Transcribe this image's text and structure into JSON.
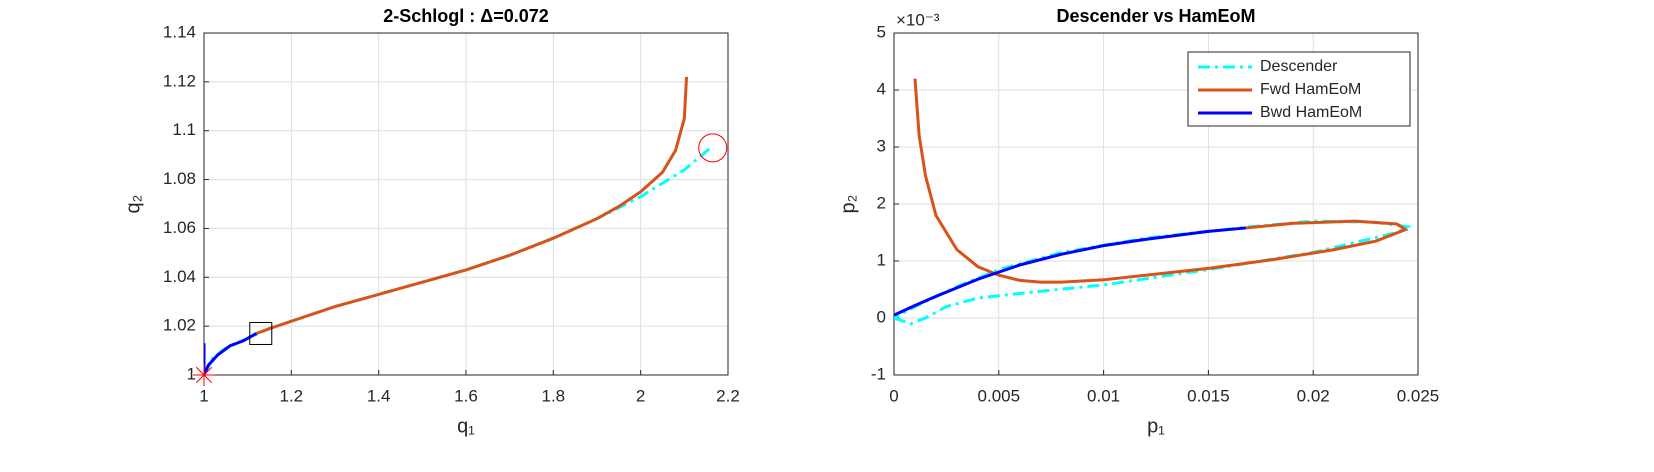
{
  "chart_data": [
    {
      "type": "line",
      "title": "2-Schlogl : Δ=0.072",
      "xlabel": "q₁",
      "ylabel": "q₂",
      "xlim": [
        1,
        2.2
      ],
      "ylim": [
        1,
        1.14
      ],
      "xticks": [
        1,
        1.2,
        1.4,
        1.6,
        1.8,
        2,
        2.2
      ],
      "yticks": [
        1,
        1.02,
        1.04,
        1.06,
        1.08,
        1.1,
        1.12,
        1.14
      ],
      "grid": true,
      "series": [
        {
          "color": "#00ffff",
          "dash": "dash-dot",
          "x": [
            1.0,
            1.02,
            1.05,
            1.1,
            1.15,
            1.2,
            1.3,
            1.4,
            1.5,
            1.6,
            1.7,
            1.8,
            1.9,
            2.0,
            2.1,
            2.16
          ],
          "values": [
            1.0,
            1.007,
            1.011,
            1.015,
            1.019,
            1.022,
            1.028,
            1.033,
            1.038,
            1.043,
            1.049,
            1.056,
            1.064,
            1.073,
            1.084,
            1.093
          ]
        },
        {
          "color": "#d95319",
          "dash": "solid",
          "x": [
            1.12,
            1.15,
            1.2,
            1.3,
            1.4,
            1.5,
            1.6,
            1.7,
            1.8,
            1.9,
            1.95,
            2.0,
            2.05,
            2.08,
            2.1,
            2.105
          ],
          "values": [
            1.017,
            1.019,
            1.022,
            1.028,
            1.033,
            1.038,
            1.043,
            1.049,
            1.056,
            1.064,
            1.069,
            1.075,
            1.083,
            1.092,
            1.105,
            1.122
          ]
        },
        {
          "color": "#0000ff",
          "dash": "solid",
          "x": [
            1.0,
            1.0,
            1.0,
            1.01,
            1.03,
            1.06,
            1.09,
            1.12
          ],
          "values": [
            1.013,
            1.005,
            1.0,
            1.004,
            1.008,
            1.012,
            1.014,
            1.017
          ]
        }
      ],
      "markers": [
        {
          "x": 1,
          "y": 1,
          "shape": "star",
          "color": "#ff0000"
        },
        {
          "x": 1.13,
          "y": 1.017,
          "shape": "square",
          "color": "#000000"
        },
        {
          "x": 2.165,
          "y": 1.093,
          "shape": "circle",
          "color": "#ff0000"
        }
      ]
    },
    {
      "type": "line",
      "title": "Descender vs HamEoM",
      "xlabel": "p₁",
      "ylabel": "p₂",
      "y_exponent_label": "×10⁻³",
      "xlim": [
        0,
        0.025
      ],
      "ylim": [
        -1,
        5
      ],
      "xticks": [
        0,
        0.005,
        0.01,
        0.015,
        0.02,
        0.025
      ],
      "yticks": [
        -1,
        0,
        1,
        2,
        3,
        4,
        5
      ],
      "grid": true,
      "legend": "upper right",
      "series": [
        {
          "name": "Descender",
          "color": "#00ffff",
          "dash": "dash-dot",
          "x": [
            0,
            0.0008,
            0.0015,
            0.0025,
            0.004,
            0.007,
            0.01,
            0.015,
            0.02,
            0.024,
            0.0245,
            0.023,
            0.02,
            0.017,
            0.012,
            0.008,
            0.005,
            0.003,
            0.001,
            0
          ],
          "values": [
            0,
            -0.1,
            0,
            0.2,
            0.35,
            0.47,
            0.58,
            0.85,
            1.15,
            1.5,
            1.6,
            1.68,
            1.7,
            1.6,
            1.4,
            1.15,
            0.85,
            0.55,
            0.2,
            0
          ]
        },
        {
          "name": "Fwd HamEoM",
          "color": "#d95319",
          "dash": "solid",
          "x": [
            0.001,
            0.0012,
            0.0015,
            0.002,
            0.003,
            0.004,
            0.005,
            0.006,
            0.007,
            0.008,
            0.01,
            0.012,
            0.015,
            0.018,
            0.021,
            0.023,
            0.0244,
            0.024,
            0.022,
            0.019,
            0.0168
          ],
          "values": [
            4.2,
            3.2,
            2.5,
            1.8,
            1.2,
            0.9,
            0.75,
            0.66,
            0.63,
            0.63,
            0.67,
            0.75,
            0.87,
            1.02,
            1.2,
            1.35,
            1.55,
            1.65,
            1.7,
            1.66,
            1.58
          ]
        },
        {
          "name": "Bwd HamEoM",
          "color": "#0000ff",
          "dash": "solid",
          "x": [
            0.0168,
            0.015,
            0.012,
            0.01,
            0.008,
            0.006,
            0.004,
            0.002,
            0.001,
            0
          ],
          "values": [
            1.58,
            1.52,
            1.38,
            1.27,
            1.12,
            0.93,
            0.68,
            0.38,
            0.22,
            0.05
          ]
        }
      ]
    }
  ]
}
